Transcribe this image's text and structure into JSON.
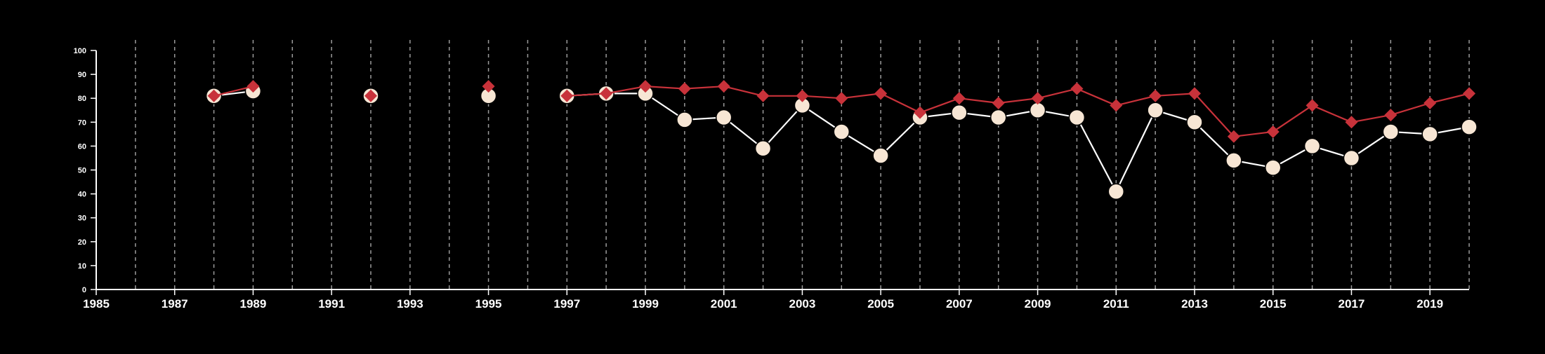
{
  "chart_data": {
    "type": "line",
    "title": "",
    "xlabel": "",
    "ylabel": "",
    "xlim": [
      1985,
      2020
    ],
    "ylim": [
      0,
      100
    ],
    "x_ticks": [
      1985,
      1987,
      1989,
      1991,
      1993,
      1995,
      1997,
      1999,
      2001,
      2003,
      2005,
      2007,
      2009,
      2011,
      2013,
      2015,
      2017,
      2019
    ],
    "y_ticks": [
      0,
      10,
      20,
      30,
      40,
      50,
      60,
      70,
      80,
      90,
      100
    ],
    "vertical_gridlines": "dashed, every year",
    "legend": "none",
    "background_color": "#000000",
    "axis_color": "#ffffff",
    "gridline_color": "#9a9a9a",
    "series": [
      {
        "marker": "diamond",
        "color": "#c8323a",
        "x": [
          1988,
          1989,
          1992,
          1995,
          1997,
          1998,
          1999,
          2000,
          2001,
          2002,
          2003,
          2004,
          2005,
          2006,
          2007,
          2008,
          2009,
          2010,
          2011,
          2012,
          2013,
          2014,
          2015,
          2016,
          2017,
          2018,
          2019,
          2020
        ],
        "values": [
          81,
          85,
          81,
          85,
          81,
          82,
          85,
          84,
          85,
          81,
          81,
          80,
          82,
          74,
          80,
          78,
          80,
          84,
          77,
          81,
          82,
          64,
          66,
          77,
          70,
          73,
          78,
          82
        ]
      },
      {
        "marker": "circle",
        "color": "#f7e6d4",
        "line_color": "#ffffff",
        "x": [
          1988,
          1989,
          1992,
          1995,
          1997,
          1998,
          1999,
          2000,
          2001,
          2002,
          2003,
          2004,
          2005,
          2006,
          2007,
          2008,
          2009,
          2010,
          2011,
          2012,
          2013,
          2014,
          2015,
          2016,
          2017,
          2018,
          2019,
          2020
        ],
        "values": [
          81,
          83,
          81,
          81,
          81,
          82,
          82,
          71,
          72,
          59,
          77,
          66,
          56,
          72,
          74,
          72,
          75,
          72,
          41,
          75,
          70,
          54,
          51,
          60,
          55,
          66,
          65,
          68
        ]
      }
    ]
  }
}
